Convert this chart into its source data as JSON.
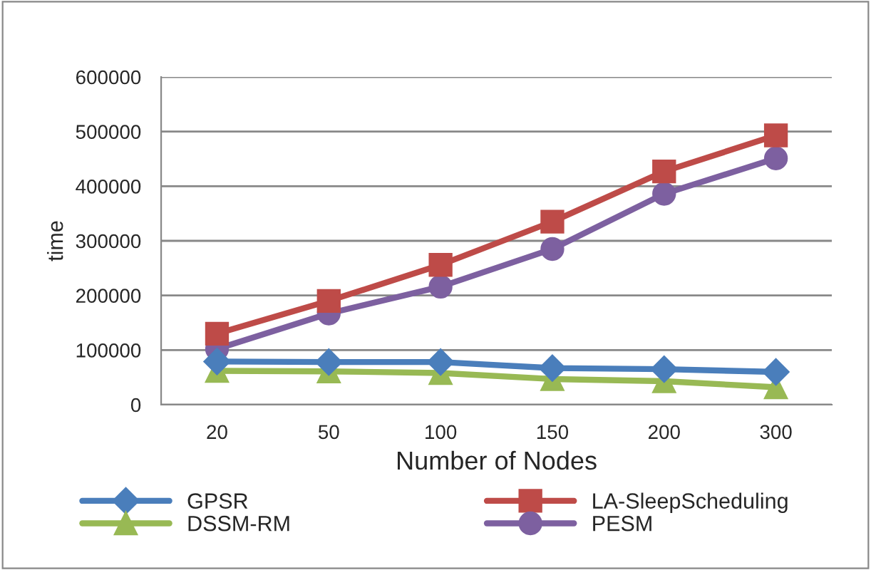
{
  "chart_data": {
    "type": "line",
    "xlabel": "Number of Nodes",
    "ylabel": "time",
    "categories": [
      "20",
      "50",
      "100",
      "150",
      "200",
      "300"
    ],
    "series": [
      {
        "name": "GPSR",
        "color": "#4a7ebb",
        "marker": "diamond",
        "values": [
          79000,
          78000,
          78000,
          67000,
          65000,
          60000
        ]
      },
      {
        "name": "LA-SleepScheduling",
        "color": "#be4b48",
        "marker": "square",
        "values": [
          130000,
          190000,
          256000,
          335000,
          427000,
          493000
        ]
      },
      {
        "name": "DSSM-RM",
        "color": "#98b954",
        "marker": "triangle",
        "values": [
          62000,
          61000,
          58000,
          47000,
          43000,
          32000
        ]
      },
      {
        "name": "PESM",
        "color": "#7d60a0",
        "marker": "circle",
        "values": [
          102000,
          167000,
          216000,
          285000,
          386000,
          451000
        ]
      }
    ],
    "ylim": [
      0,
      600000
    ],
    "yticks": [
      0,
      100000,
      200000,
      300000,
      400000,
      500000,
      600000
    ],
    "grid": "y",
    "legend": "bottom"
  }
}
